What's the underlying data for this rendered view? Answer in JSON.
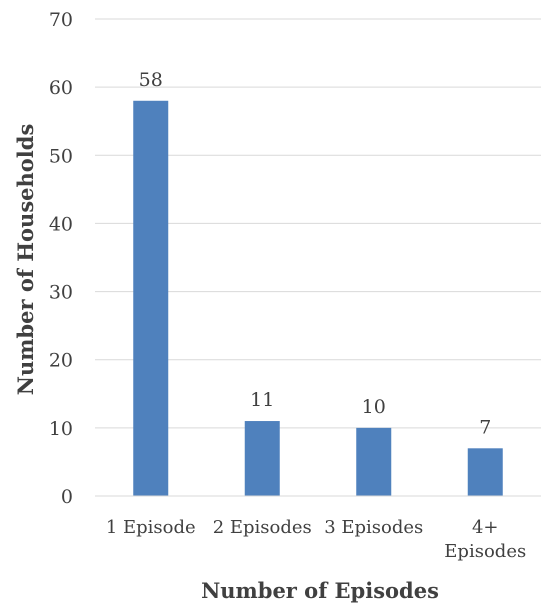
{
  "chart_data": {
    "type": "bar",
    "categories": [
      "1 Episode",
      "2 Episodes",
      "3 Episodes",
      "4+ Episodes"
    ],
    "category_label_lines": [
      [
        "1 Episode"
      ],
      [
        "2 Episodes"
      ],
      [
        "3 Episodes"
      ],
      [
        "4+",
        "Episodes"
      ]
    ],
    "values": [
      58,
      11,
      10,
      7
    ],
    "data_labels": [
      "58",
      "11",
      "10",
      "7"
    ],
    "xlabel": "Number of Episodes",
    "ylabel": "Number of Households",
    "ylim": [
      0,
      70
    ],
    "yticks": [
      0,
      10,
      20,
      30,
      40,
      50,
      60,
      70
    ],
    "grid": true,
    "legend": "none",
    "colors": {
      "bar": "#4F81BD",
      "grid": "#D9D9D9",
      "text": "#404040",
      "axis_title": "#404040"
    }
  }
}
